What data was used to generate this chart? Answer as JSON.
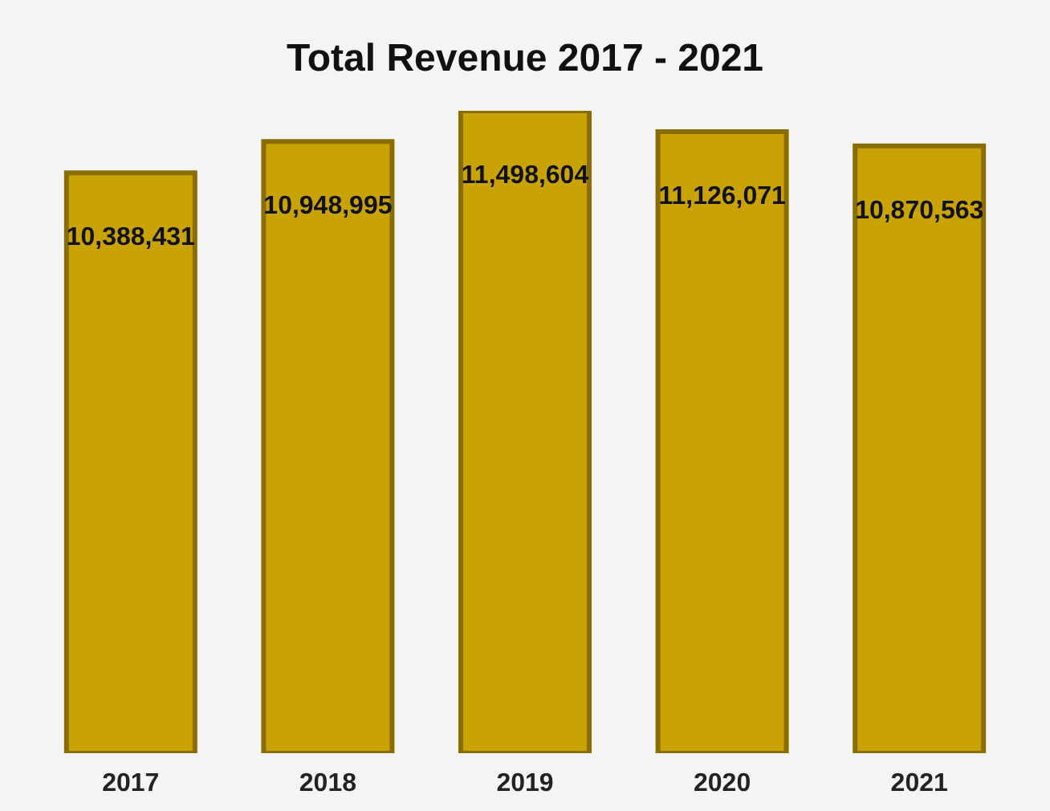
{
  "chart_data": {
    "type": "bar",
    "title": "Total Revenue 2017 - 2021",
    "categories": [
      "2017",
      "2018",
      "2019",
      "2020",
      "2021"
    ],
    "values": [
      10388431,
      10948995,
      11498604,
      11126071,
      10870563
    ],
    "value_labels": [
      "10,388,431",
      "10,948,995",
      "11,498,604",
      "11,126,071",
      "10,870,563"
    ],
    "color": "#c9a204",
    "tick_labels": "x",
    "grid": false
  }
}
